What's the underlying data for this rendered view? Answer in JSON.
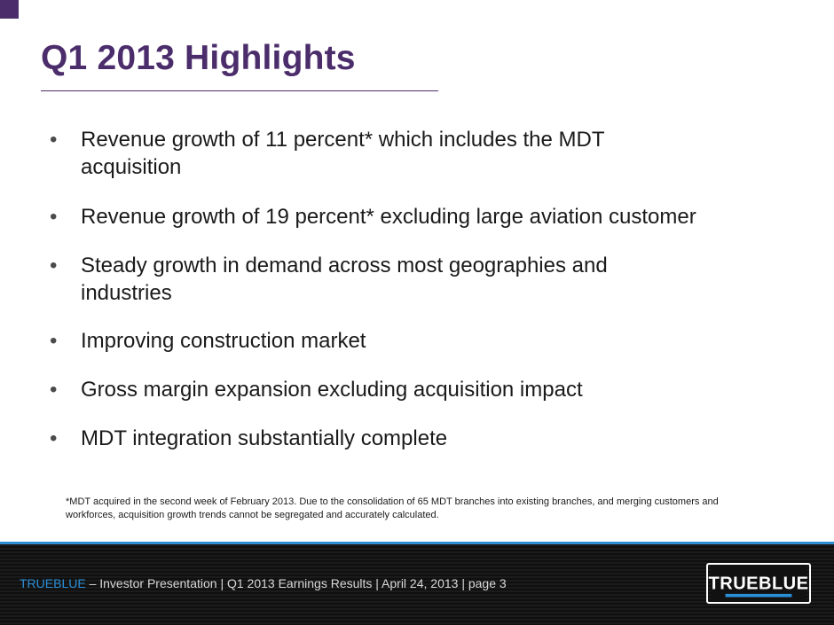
{
  "slide": {
    "title": "Q1 2013 Highlights",
    "bullets": [
      {
        "marker": "•",
        "text": "Revenue growth of 11 percent* which includes the MDT acquisition"
      },
      {
        "marker": "•",
        "text": "Revenue growth of 19 percent* excluding large aviation customer"
      },
      {
        "marker": "•",
        "text": "Steady growth in demand across most geographies and industries"
      },
      {
        "marker": "•",
        "text": "Improving construction market"
      },
      {
        "marker": "•",
        "text": "Gross margin expansion excluding acquisition impact"
      },
      {
        "marker": "•",
        "text": "MDT integration substantially complete"
      }
    ],
    "footnote": "*MDT acquired in the second week of February 2013.  Due to the consolidation of 65 MDT branches into existing branches, and merging customers and workforces, acquisition growth trends cannot be segregated and  accurately calculated."
  },
  "footer": {
    "brand": "TRUEBLUE",
    "caption": " – Investor Presentation | Q1 2013 Earnings Results | April 24, 2013  | page 3",
    "logo_text": "TRUEBLUE"
  },
  "colors": {
    "title_purple": "#4b2d6b",
    "accent_blue": "#2b8fd6",
    "footer_dark": "#141414"
  }
}
